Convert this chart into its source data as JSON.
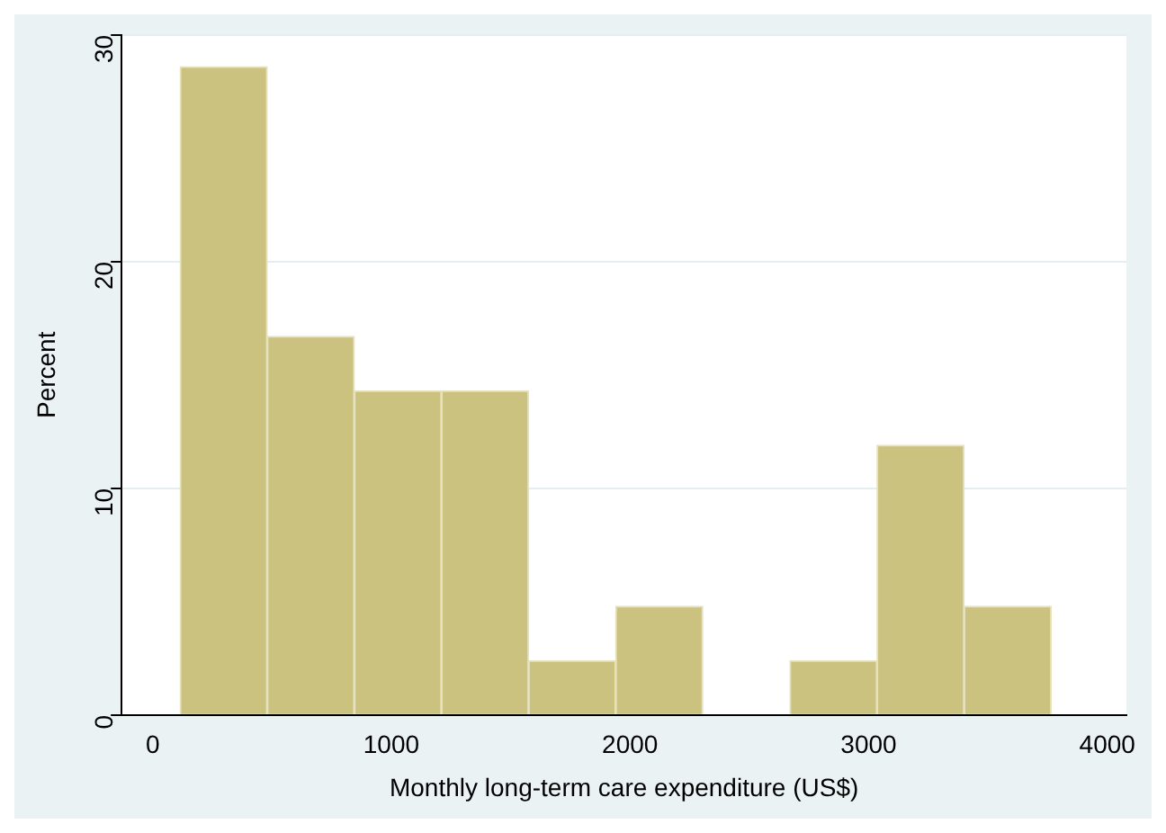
{
  "chart_data": {
    "type": "histogram",
    "xlabel": "Monthly long-term care expenditure (US$)",
    "ylabel": "Percent",
    "bins": [
      115,
      480,
      845,
      1210,
      1575,
      1940,
      2305,
      2670,
      3035,
      3400,
      3765
    ],
    "values": [
      28.6,
      16.7,
      14.3,
      14.3,
      2.4,
      4.8,
      0,
      2.4,
      11.9,
      4.8
    ],
    "color": "#cbc27f",
    "xlim": [
      -130,
      4080
    ],
    "xticks": [
      0,
      1000,
      2000,
      3000,
      4000
    ],
    "ylim": [
      0,
      30
    ],
    "yticks": [
      0,
      10,
      20,
      30
    ],
    "grid": "y",
    "legend": false
  }
}
